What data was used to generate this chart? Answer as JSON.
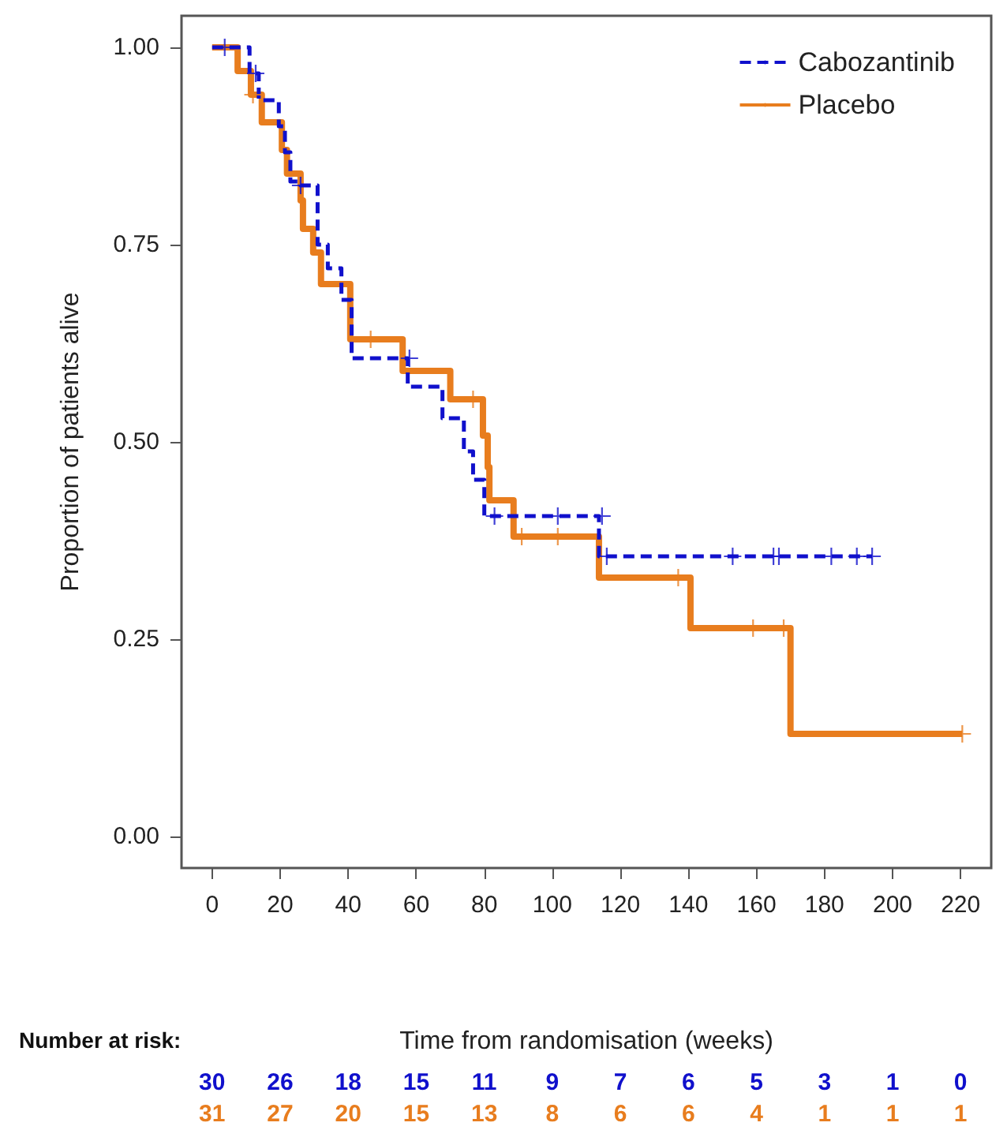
{
  "chart_data": {
    "type": "step",
    "xlabel": "Time from randomisation (weeks)",
    "ylabel": "Proportion of patients alive",
    "legend": "top right",
    "grid": false,
    "xlim": [
      -9,
      229
    ],
    "xticks": [
      0,
      20,
      40,
      60,
      80,
      100,
      120,
      140,
      160,
      180,
      200,
      220
    ],
    "ylim": [
      -0.04,
      1.04
    ],
    "yticks": [
      {
        "value": 0,
        "label": "0.00"
      },
      {
        "value": 0.25,
        "label": "0.25"
      },
      {
        "value": 0.5,
        "label": "0.50"
      },
      {
        "value": 0.75,
        "label": "0.75"
      },
      {
        "value": 1,
        "label": "1.00"
      }
    ],
    "series": [
      {
        "name": "Cabozantinib",
        "color": "#1010cc",
        "line_style": "dashed",
        "marker": "none",
        "x": [
          0,
          11,
          13.7,
          19.6,
          21.4,
          23,
          26,
          31,
          34,
          38,
          41,
          57.5,
          67.7,
          74,
          76.7,
          80,
          113.7,
          194
        ],
        "values": [
          1,
          0.967,
          0.933,
          0.9,
          0.867,
          0.83,
          0.825,
          0.75,
          0.72,
          0.68,
          0.606,
          0.57,
          0.53,
          0.488,
          0.452,
          0.406,
          0.355,
          0.355
        ]
      },
      {
        "name": "Placebo",
        "color": "#e87d1e",
        "line_style": "solid",
        "marker": "none",
        "x": [
          0,
          7.5,
          11.4,
          14.6,
          20.5,
          22,
          26,
          26.7,
          29.7,
          32,
          40.6,
          56,
          70,
          79.6,
          81,
          81.5,
          88.6,
          113.7,
          140.6,
          170,
          220.5
        ],
        "values": [
          1,
          0.97,
          0.94,
          0.905,
          0.87,
          0.84,
          0.806,
          0.77,
          0.74,
          0.7,
          0.63,
          0.59,
          0.554,
          0.508,
          0.468,
          0.426,
          0.38,
          0.328,
          0.264,
          0.13,
          0.13
        ]
      },
      {
        "type": "scatter",
        "color": "#1010cc",
        "marker": "cross",
        "x": [
          3.7,
          12.8,
          26,
          58,
          83,
          101.6,
          114.6,
          116,
          153,
          165,
          166.6,
          182,
          189.5,
          194
        ],
        "values": [
          1,
          0.967,
          0.825,
          0.606,
          0.406,
          0.406,
          0.406,
          0.355,
          0.355,
          0.355,
          0.355,
          0.355,
          0.355,
          0.355
        ]
      },
      {
        "type": "scatter",
        "color": "#e87d1e",
        "marker": "cross",
        "x": [
          12,
          46.6,
          76.7,
          91,
          101.6,
          137,
          159,
          168,
          220.5
        ],
        "values": [
          0.94,
          0.63,
          0.554,
          0.38,
          0.38,
          0.328,
          0.264,
          0.264,
          0.13
        ]
      }
    ],
    "annotations": [
      "Number at risk:",
      "30",
      "26",
      "18",
      "15",
      "11",
      "9",
      "7",
      "6",
      "5",
      "3",
      "1",
      "0",
      "31",
      "27",
      "20",
      "15",
      "13",
      "8",
      "6",
      "6",
      "4",
      "1",
      "1",
      "1"
    ]
  }
}
